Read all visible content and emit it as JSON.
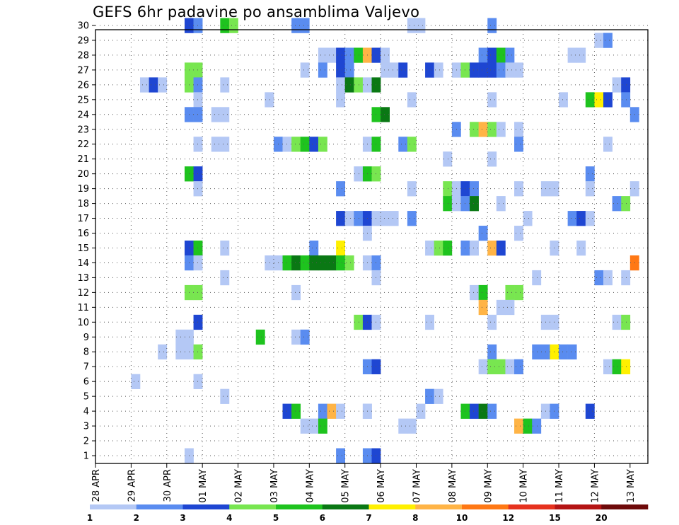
{
  "chart_data": {
    "type": "heatmap",
    "title": "GEFS 6hr padavine po ansamblima Valjevo",
    "x_tick_labels": [
      "28 APR",
      "29 APR",
      "30 APR",
      "01 MAY",
      "02 MAY",
      "03 MAY",
      "04 MAY",
      "05 MAY",
      "06 MAY",
      "07 MAY",
      "08 MAY",
      "09 MAY",
      "10 MAY",
      "11 MAY",
      "12 MAY",
      "13 MAY"
    ],
    "y_tick_labels": [
      "1",
      "2",
      "3",
      "4",
      "5",
      "6",
      "7",
      "8",
      "9",
      "10",
      "11",
      "12",
      "13",
      "14",
      "15",
      "16",
      "17",
      "18",
      "19",
      "20",
      "21",
      "22",
      "23",
      "24",
      "25",
      "26",
      "27",
      "28",
      "29",
      "30"
    ],
    "colorbar": {
      "levels": [
        "1",
        "2",
        "3",
        "4",
        "5",
        "6",
        "7",
        "8",
        "10",
        "12",
        "15",
        "20"
      ],
      "colors": [
        "#b4c8f5",
        "#5a8cf0",
        "#1e46d2",
        "#78e650",
        "#1ec31e",
        "#0a7814",
        "#fff000",
        "#ffb446",
        "#ff7814",
        "#e6321e",
        "#b41414",
        "#6e0a0a"
      ]
    },
    "x_domain": [
      0,
      62
    ],
    "y_domain": [
      1,
      30
    ],
    "grid": true,
    "cells": [
      [
        10,
        30,
        3
      ],
      [
        11,
        30,
        2
      ],
      [
        14,
        30,
        5
      ],
      [
        15,
        30,
        4
      ],
      [
        22,
        30,
        2
      ],
      [
        23,
        30,
        2
      ],
      [
        35,
        30,
        1
      ],
      [
        36,
        30,
        1
      ],
      [
        44,
        30,
        2
      ],
      [
        56,
        29,
        1
      ],
      [
        57,
        29,
        2
      ],
      [
        25,
        28,
        1
      ],
      [
        26,
        28,
        1
      ],
      [
        27,
        28,
        3
      ],
      [
        28,
        28,
        2
      ],
      [
        29,
        28,
        5
      ],
      [
        30,
        28,
        8
      ],
      [
        31,
        28,
        3
      ],
      [
        32,
        28,
        1
      ],
      [
        43,
        28,
        2
      ],
      [
        44,
        28,
        3
      ],
      [
        45,
        28,
        5
      ],
      [
        46,
        28,
        2
      ],
      [
        53,
        28,
        1
      ],
      [
        54,
        28,
        1
      ],
      [
        10,
        27,
        4
      ],
      [
        11,
        27,
        4
      ],
      [
        23,
        27,
        1
      ],
      [
        25,
        27,
        2
      ],
      [
        27,
        27,
        3
      ],
      [
        28,
        27,
        2
      ],
      [
        32,
        27,
        1
      ],
      [
        33,
        27,
        1
      ],
      [
        34,
        27,
        3
      ],
      [
        37,
        27,
        3
      ],
      [
        38,
        27,
        1
      ],
      [
        40,
        27,
        1
      ],
      [
        41,
        27,
        4
      ],
      [
        42,
        27,
        3
      ],
      [
        43,
        27,
        3
      ],
      [
        44,
        27,
        3
      ],
      [
        45,
        27,
        2
      ],
      [
        46,
        27,
        1
      ],
      [
        47,
        27,
        1
      ],
      [
        5,
        26,
        1
      ],
      [
        6,
        26,
        3
      ],
      [
        7,
        26,
        1
      ],
      [
        10,
        26,
        4
      ],
      [
        11,
        26,
        2
      ],
      [
        14,
        26,
        1
      ],
      [
        27,
        26,
        1
      ],
      [
        28,
        26,
        6
      ],
      [
        29,
        26,
        4
      ],
      [
        30,
        26,
        1
      ],
      [
        31,
        26,
        6
      ],
      [
        58,
        26,
        1
      ],
      [
        59,
        26,
        3
      ],
      [
        11,
        25,
        1
      ],
      [
        19,
        25,
        1
      ],
      [
        27,
        25,
        1
      ],
      [
        35,
        25,
        1
      ],
      [
        44,
        25,
        1
      ],
      [
        52,
        25,
        1
      ],
      [
        55,
        25,
        5
      ],
      [
        56,
        25,
        7
      ],
      [
        57,
        25,
        3
      ],
      [
        59,
        25,
        2
      ],
      [
        10,
        24,
        2
      ],
      [
        11,
        24,
        2
      ],
      [
        13,
        24,
        1
      ],
      [
        14,
        24,
        1
      ],
      [
        31,
        24,
        5
      ],
      [
        32,
        24,
        6
      ],
      [
        60,
        24,
        2
      ],
      [
        40,
        23,
        2
      ],
      [
        42,
        23,
        4
      ],
      [
        43,
        23,
        8
      ],
      [
        44,
        23,
        4
      ],
      [
        45,
        23,
        1
      ],
      [
        47,
        23,
        1
      ],
      [
        11,
        22,
        1
      ],
      [
        13,
        22,
        1
      ],
      [
        14,
        22,
        1
      ],
      [
        20,
        22,
        2
      ],
      [
        21,
        22,
        1
      ],
      [
        22,
        22,
        4
      ],
      [
        23,
        22,
        5
      ],
      [
        24,
        22,
        3
      ],
      [
        25,
        22,
        4
      ],
      [
        30,
        22,
        1
      ],
      [
        31,
        22,
        5
      ],
      [
        34,
        22,
        2
      ],
      [
        35,
        22,
        4
      ],
      [
        47,
        22,
        2
      ],
      [
        57,
        22,
        1
      ],
      [
        39,
        21,
        1
      ],
      [
        44,
        21,
        1
      ],
      [
        10,
        20,
        5
      ],
      [
        11,
        20,
        3
      ],
      [
        29,
        20,
        1
      ],
      [
        30,
        20,
        5
      ],
      [
        31,
        20,
        4
      ],
      [
        55,
        20,
        2
      ],
      [
        11,
        19,
        1
      ],
      [
        27,
        19,
        2
      ],
      [
        35,
        19,
        1
      ],
      [
        39,
        19,
        4
      ],
      [
        40,
        19,
        1
      ],
      [
        41,
        19,
        3
      ],
      [
        42,
        19,
        2
      ],
      [
        47,
        19,
        1
      ],
      [
        50,
        19,
        1
      ],
      [
        51,
        19,
        1
      ],
      [
        55,
        19,
        1
      ],
      [
        60,
        19,
        1
      ],
      [
        39,
        18,
        5
      ],
      [
        40,
        18,
        1
      ],
      [
        41,
        18,
        2
      ],
      [
        42,
        18,
        6
      ],
      [
        45,
        18,
        1
      ],
      [
        58,
        18,
        2
      ],
      [
        59,
        18,
        4
      ],
      [
        27,
        17,
        3
      ],
      [
        28,
        17,
        1
      ],
      [
        29,
        17,
        2
      ],
      [
        30,
        17,
        3
      ],
      [
        31,
        17,
        1
      ],
      [
        32,
        17,
        1
      ],
      [
        33,
        17,
        1
      ],
      [
        35,
        17,
        2
      ],
      [
        48,
        17,
        1
      ],
      [
        53,
        17,
        2
      ],
      [
        54,
        17,
        3
      ],
      [
        55,
        17,
        1
      ],
      [
        30,
        16,
        1
      ],
      [
        43,
        16,
        2
      ],
      [
        47,
        16,
        1
      ],
      [
        10,
        15,
        3
      ],
      [
        11,
        15,
        5
      ],
      [
        14,
        15,
        1
      ],
      [
        24,
        15,
        2
      ],
      [
        27,
        15,
        7
      ],
      [
        37,
        15,
        1
      ],
      [
        38,
        15,
        4
      ],
      [
        39,
        15,
        5
      ],
      [
        41,
        15,
        2
      ],
      [
        42,
        15,
        1
      ],
      [
        44,
        15,
        8
      ],
      [
        45,
        15,
        3
      ],
      [
        51,
        15,
        1
      ],
      [
        54,
        15,
        1
      ],
      [
        10,
        14,
        2
      ],
      [
        11,
        14,
        1
      ],
      [
        19,
        14,
        1
      ],
      [
        20,
        14,
        1
      ],
      [
        21,
        14,
        5
      ],
      [
        22,
        14,
        6
      ],
      [
        23,
        14,
        5
      ],
      [
        24,
        14,
        6
      ],
      [
        25,
        14,
        6
      ],
      [
        26,
        14,
        6
      ],
      [
        27,
        14,
        5
      ],
      [
        28,
        14,
        4
      ],
      [
        30,
        14,
        1
      ],
      [
        31,
        14,
        2
      ],
      [
        60,
        14,
        9
      ],
      [
        14,
        13,
        1
      ],
      [
        31,
        13,
        1
      ],
      [
        49,
        13,
        1
      ],
      [
        56,
        13,
        2
      ],
      [
        57,
        13,
        1
      ],
      [
        59,
        13,
        1
      ],
      [
        10,
        12,
        4
      ],
      [
        11,
        12,
        4
      ],
      [
        22,
        12,
        1
      ],
      [
        42,
        12,
        1
      ],
      [
        43,
        12,
        5
      ],
      [
        46,
        12,
        4
      ],
      [
        47,
        12,
        4
      ],
      [
        43,
        11,
        8
      ],
      [
        45,
        11,
        1
      ],
      [
        46,
        11,
        1
      ],
      [
        11,
        10,
        3
      ],
      [
        29,
        10,
        4
      ],
      [
        30,
        10,
        3
      ],
      [
        31,
        10,
        1
      ],
      [
        37,
        10,
        1
      ],
      [
        44,
        10,
        1
      ],
      [
        50,
        10,
        1
      ],
      [
        51,
        10,
        1
      ],
      [
        58,
        10,
        1
      ],
      [
        59,
        10,
        4
      ],
      [
        9,
        9,
        1
      ],
      [
        10,
        9,
        1
      ],
      [
        18,
        9,
        5
      ],
      [
        22,
        9,
        1
      ],
      [
        23,
        9,
        2
      ],
      [
        7,
        8,
        1
      ],
      [
        9,
        8,
        1
      ],
      [
        10,
        8,
        1
      ],
      [
        11,
        8,
        4
      ],
      [
        44,
        8,
        2
      ],
      [
        49,
        8,
        2
      ],
      [
        50,
        8,
        2
      ],
      [
        51,
        8,
        7
      ],
      [
        52,
        8,
        2
      ],
      [
        53,
        8,
        2
      ],
      [
        30,
        7,
        2
      ],
      [
        31,
        7,
        3
      ],
      [
        43,
        7,
        1
      ],
      [
        44,
        7,
        4
      ],
      [
        45,
        7,
        4
      ],
      [
        46,
        7,
        1
      ],
      [
        47,
        7,
        2
      ],
      [
        57,
        7,
        1
      ],
      [
        58,
        7,
        5
      ],
      [
        59,
        7,
        7
      ],
      [
        4,
        6,
        1
      ],
      [
        11,
        6,
        1
      ],
      [
        14,
        5,
        1
      ],
      [
        30,
        4,
        1
      ],
      [
        37,
        5,
        2
      ],
      [
        38,
        5,
        1
      ],
      [
        21,
        4,
        3
      ],
      [
        22,
        4,
        5
      ],
      [
        25,
        4,
        2
      ],
      [
        26,
        4,
        8
      ],
      [
        27,
        4,
        1
      ],
      [
        30,
        4,
        1
      ],
      [
        36,
        4,
        1
      ],
      [
        41,
        4,
        5
      ],
      [
        42,
        4,
        3
      ],
      [
        43,
        4,
        6
      ],
      [
        44,
        4,
        2
      ],
      [
        50,
        4,
        1
      ],
      [
        51,
        4,
        2
      ],
      [
        55,
        4,
        3
      ],
      [
        23,
        3,
        1
      ],
      [
        24,
        3,
        1
      ],
      [
        25,
        3,
        5
      ],
      [
        34,
        3,
        1
      ],
      [
        35,
        3,
        1
      ],
      [
        47,
        3,
        8
      ],
      [
        48,
        3,
        5
      ],
      [
        49,
        3,
        2
      ],
      [
        10,
        1,
        1
      ],
      [
        27,
        1,
        2
      ],
      [
        30,
        1,
        2
      ],
      [
        31,
        1,
        3
      ]
    ]
  }
}
